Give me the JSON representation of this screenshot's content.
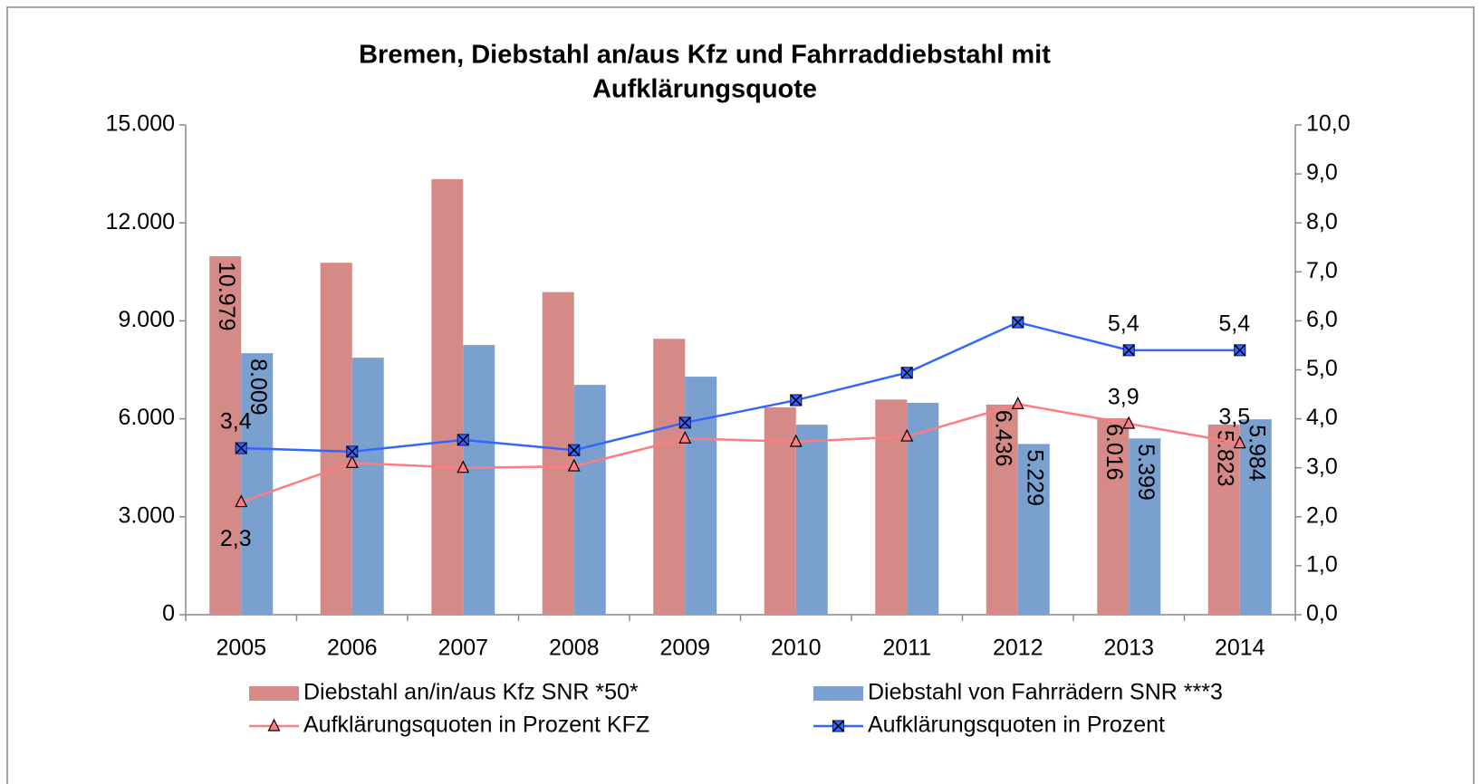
{
  "chart_data": {
    "type": "bar",
    "title": [
      "Bremen, Diebstahl an/aus Kfz und Fahrraddiebstahl mit",
      "Aufklärungsquote"
    ],
    "categories": [
      "2005",
      "2006",
      "2007",
      "2008",
      "2009",
      "2010",
      "2011",
      "2012",
      "2013",
      "2014"
    ],
    "series": [
      {
        "name": "Diebstahl an/in/aus Kfz SNR *50*",
        "type": "bar",
        "color": "#d58a87",
        "values": [
          10979,
          10780,
          13340,
          9880,
          8450,
          6350,
          6590,
          6436,
          6016,
          5823
        ],
        "value_labels": [
          "10.979",
          null,
          null,
          null,
          null,
          null,
          null,
          "6.436",
          "6.016",
          "5.823"
        ]
      },
      {
        "name": "Diebstahl von Fahrrädern SNR ***3",
        "type": "bar",
        "color": "#7aa0cf",
        "values": [
          8009,
          7870,
          8260,
          7040,
          7290,
          5820,
          6490,
          5229,
          5399,
          5984
        ],
        "value_labels": [
          "8.009",
          null,
          null,
          null,
          null,
          null,
          null,
          "5.229",
          "5.399",
          "5.984"
        ]
      },
      {
        "name": "Aufklärungsquoten in Prozent KFZ",
        "type": "line",
        "axis": "y2",
        "color": "#ff7c80",
        "marker": "triangle",
        "values": [
          2.3,
          3.1,
          3.0,
          3.03,
          3.6,
          3.53,
          3.64,
          4.3,
          3.9,
          3.5
        ],
        "value_labels": [
          "2,3",
          null,
          null,
          null,
          null,
          null,
          null,
          null,
          "3,9",
          "3,5"
        ]
      },
      {
        "name": "Aufklärungsquoten in Prozent",
        "type": "line",
        "axis": "y2",
        "color": "#3366ff",
        "marker": "x-square",
        "values": [
          3.4,
          3.33,
          3.57,
          3.36,
          3.92,
          4.38,
          4.94,
          5.97,
          5.4,
          5.4
        ],
        "value_labels": [
          "3,4",
          null,
          null,
          null,
          null,
          null,
          null,
          null,
          "5,4",
          "5,4"
        ]
      }
    ],
    "ylim": [
      0,
      15000
    ],
    "yticks": [
      0,
      {
        "value": 3000,
        "label": "3.000"
      },
      {
        "value": 6000,
        "label": "6.000"
      },
      {
        "value": 9000,
        "label": "9.000"
      },
      {
        "value": 12000,
        "label": "12.000"
      },
      {
        "value": 15000,
        "label": "15.000"
      }
    ],
    "y2lim": [
      0,
      10
    ],
    "y2ticks": [
      {
        "value": 0,
        "label": "0,0"
      },
      {
        "value": 1,
        "label": "1,0"
      },
      {
        "value": 2,
        "label": "2,0"
      },
      {
        "value": 3,
        "label": "3,0"
      },
      {
        "value": 4,
        "label": "4,0"
      },
      {
        "value": 5,
        "label": "5,0"
      },
      {
        "value": 6,
        "label": "6,0"
      },
      {
        "value": 7,
        "label": "7,0"
      },
      {
        "value": 8,
        "label": "8,0"
      },
      {
        "value": 9,
        "label": "9,0"
      },
      {
        "value": 10,
        "label": "10,0"
      }
    ],
    "grid": false,
    "legend": "bottom"
  }
}
